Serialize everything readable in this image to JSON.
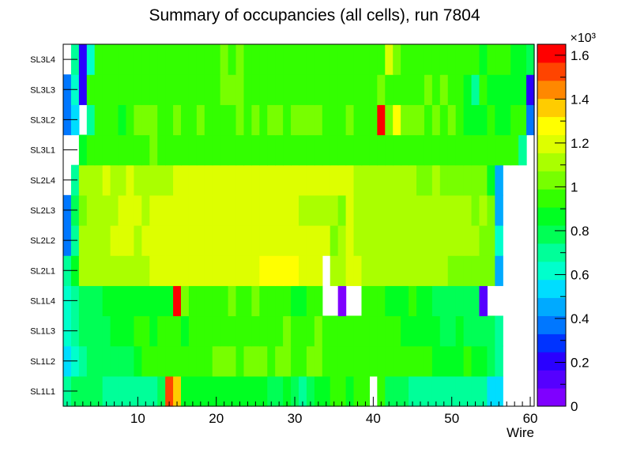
{
  "chart_data": {
    "type": "heatmap",
    "title": "Summary of occupancies (all cells),      run 7804",
    "xlabel": "Wire",
    "ylabel": "",
    "x_range": [
      0.5,
      60.5
    ],
    "x_ticks": [
      "10",
      "20",
      "30",
      "40",
      "50",
      "60"
    ],
    "x_tick_values": [
      10,
      20,
      30,
      40,
      50,
      60
    ],
    "y_labels": [
      "SL1L1",
      "SL1L2",
      "SL1L3",
      "SL1L4",
      "SL2L1",
      "SL2L2",
      "SL2L3",
      "SL2L4",
      "SL3L1",
      "SL3L2",
      "SL3L3",
      "SL3L4"
    ],
    "z_range": [
      0,
      1650
    ],
    "z_scale_label": "×10³",
    "z_ticks": [
      "0",
      "0.2",
      "0.4",
      "0.6",
      "0.8",
      "1",
      "1.2",
      "1.4",
      "1.6"
    ],
    "z_tick_values": [
      0,
      200,
      400,
      600,
      800,
      1000,
      1200,
      1400,
      1600
    ],
    "palette": [
      "#7f00ff",
      "#5500ff",
      "#2a00ff",
      "#0033ff",
      "#0077ff",
      "#00aaff",
      "#00ddff",
      "#00ffcc",
      "#00ff99",
      "#00ff55",
      "#00ff22",
      "#33ff00",
      "#77ff00",
      "#aaff00",
      "#ddff00",
      "#ffff00",
      "#ffcc00",
      "#ff8800",
      "#ff4400",
      "#ff0000"
    ],
    "values": [
      [
        680,
        780,
        800,
        800,
        780,
        740,
        740,
        740,
        740,
        740,
        740,
        740,
        760,
        1500,
        1320,
        860,
        900,
        840,
        860,
        900,
        880,
        840,
        880,
        900,
        860,
        860,
        820,
        820,
        860,
        760,
        740,
        820,
        880,
        900,
        920,
        960,
        840,
        940,
        960,
        0,
        980,
        800,
        800,
        800,
        720,
        720,
        720,
        700,
        700,
        680,
        680,
        680,
        680,
        680,
        520,
        520,
        0,
        0,
        0,
        0
      ],
      [
        500,
        580,
        740,
        780,
        780,
        800,
        820,
        820,
        820,
        900,
        920,
        940,
        940,
        940,
        920,
        940,
        960,
        920,
        980,
        1000,
        1000,
        1000,
        980,
        1000,
        1040,
        1020,
        960,
        1000,
        1000,
        960,
        980,
        1000,
        1020,
        960,
        960,
        940,
        980,
        960,
        980,
        920,
        940,
        940,
        920,
        960,
        940,
        920,
        920,
        880,
        900,
        900,
        900,
        920,
        860,
        860,
        820,
        720,
        0,
        0,
        0,
        0
      ],
      [
        580,
        700,
        760,
        780,
        800,
        800,
        860,
        860,
        900,
        940,
        920,
        900,
        920,
        940,
        960,
        900,
        960,
        940,
        960,
        960,
        940,
        960,
        960,
        960,
        980,
        980,
        960,
        960,
        1000,
        980,
        960,
        980,
        1000,
        920,
        960,
        980,
        960,
        960,
        960,
        920,
        920,
        920,
        960,
        900,
        900,
        900,
        880,
        860,
        820,
        820,
        840,
        820,
        820,
        820,
        760,
        700,
        0,
        0,
        0,
        0
      ],
      [
        600,
        740,
        780,
        800,
        820,
        860,
        880,
        860,
        840,
        880,
        880,
        860,
        880,
        880,
        1680,
        1000,
        940,
        980,
        960,
        960,
        980,
        1000,
        960,
        960,
        1000,
        980,
        940,
        960,
        980,
        900,
        880,
        960,
        980,
        0,
        0,
        60,
        0,
        0,
        960,
        960,
        920,
        880,
        880,
        880,
        920,
        880,
        860,
        780,
        760,
        780,
        760,
        760,
        760,
        140,
        0,
        0,
        0,
        0,
        0,
        0
      ],
      [
        680,
        880,
        1080,
        1100,
        1100,
        1080,
        1140,
        1140,
        1140,
        1140,
        1140,
        1180,
        1160,
        1160,
        1200,
        1180,
        1200,
        1200,
        1200,
        1200,
        1200,
        1200,
        1200,
        1200,
        1200,
        1240,
        1240,
        1240,
        1240,
        1260,
        1180,
        1200,
        1200,
        0,
        1100,
        1140,
        1160,
        1160,
        1140,
        1140,
        1140,
        1100,
        1100,
        1100,
        1100,
        1100,
        1100,
        1100,
        1100,
        1060,
        1060,
        1060,
        1060,
        1040,
        1000,
        460,
        0,
        0,
        0,
        0
      ],
      [
        380,
        720,
        1100,
        1120,
        1140,
        1140,
        1160,
        1180,
        1180,
        1140,
        1160,
        1180,
        1200,
        1200,
        1200,
        1200,
        1200,
        1180,
        1200,
        1200,
        1200,
        1200,
        1200,
        1220,
        1220,
        1220,
        1200,
        1200,
        1220,
        1220,
        1200,
        1200,
        1200,
        1200,
        1060,
        1120,
        1200,
        1140,
        1140,
        1120,
        1120,
        1100,
        1100,
        1100,
        1100,
        1100,
        1100,
        1100,
        1100,
        1080,
        1100,
        1080,
        1100,
        1060,
        1060,
        600,
        0,
        0,
        0,
        0
      ],
      [
        400,
        760,
        1040,
        1080,
        1100,
        1100,
        1140,
        1160,
        1160,
        1160,
        1140,
        1160,
        1160,
        1160,
        1180,
        1200,
        1180,
        1180,
        1180,
        1180,
        1180,
        1180,
        1180,
        1180,
        1180,
        1160,
        1160,
        1160,
        1180,
        1180,
        1140,
        1100,
        1100,
        1120,
        1080,
        1020,
        1160,
        1120,
        1100,
        1100,
        1120,
        1100,
        1100,
        1120,
        1120,
        1100,
        1080,
        1080,
        1080,
        1100,
        1080,
        1080,
        1060,
        1080,
        1020,
        460,
        0,
        0,
        0,
        0
      ],
      [
        0,
        660,
        1080,
        1100,
        1140,
        1160,
        1140,
        1140,
        1160,
        1140,
        1100,
        1120,
        1140,
        1140,
        1160,
        1160,
        1180,
        1180,
        1180,
        1180,
        1180,
        1180,
        1180,
        1180,
        1180,
        1160,
        1180,
        1180,
        1160,
        1180,
        1180,
        1180,
        1180,
        1180,
        1160,
        1160,
        1180,
        1140,
        1120,
        1120,
        1100,
        1100,
        1100,
        1080,
        1080,
        1060,
        1060,
        1080,
        1060,
        1060,
        1060,
        1040,
        1060,
        1040,
        900,
        420,
        0,
        0,
        0,
        0
      ],
      [
        0,
        0,
        880,
        960,
        960,
        940,
        940,
        960,
        980,
        980,
        980,
        1000,
        960,
        980,
        960,
        960,
        960,
        960,
        960,
        960,
        980,
        980,
        960,
        960,
        960,
        980,
        960,
        960,
        960,
        960,
        980,
        960,
        960,
        960,
        960,
        960,
        960,
        960,
        960,
        960,
        960,
        960,
        960,
        960,
        960,
        960,
        960,
        960,
        960,
        960,
        960,
        960,
        960,
        960,
        960,
        960,
        960,
        960,
        720,
        0
      ],
      [
        380,
        520,
        0,
        660,
        940,
        960,
        940,
        900,
        940,
        1000,
        1000,
        1000,
        980,
        960,
        1000,
        960,
        960,
        1000,
        960,
        940,
        980,
        960,
        1000,
        960,
        1000,
        980,
        1000,
        1000,
        960,
        1000,
        1000,
        1060,
        1000,
        960,
        960,
        960,
        1000,
        960,
        960,
        960,
        1700,
        1040,
        1240,
        1000,
        1000,
        1000,
        960,
        1020,
        960,
        1040,
        960,
        900,
        900,
        900,
        940,
        900,
        900,
        940,
        960,
        380
      ],
      [
        400,
        580,
        200,
        980,
        980,
        980,
        960,
        960,
        960,
        960,
        960,
        980,
        960,
        940,
        960,
        960,
        960,
        960,
        960,
        960,
        1000,
        1000,
        1000,
        960,
        980,
        980,
        960,
        960,
        960,
        960,
        960,
        960,
        960,
        960,
        980,
        960,
        960,
        960,
        960,
        960,
        1040,
        960,
        960,
        980,
        960,
        960,
        1020,
        960,
        1000,
        980,
        920,
        900,
        700,
        980,
        880,
        900,
        860,
        860,
        900,
        200
      ],
      [
        0,
        740,
        200,
        600,
        960,
        920,
        920,
        920,
        920,
        940,
        960,
        920,
        920,
        920,
        920,
        920,
        960,
        920,
        940,
        960,
        1000,
        980,
        1000,
        960,
        940,
        920,
        920,
        920,
        920,
        960,
        960,
        960,
        960,
        960,
        960,
        960,
        960,
        960,
        960,
        960,
        960,
        1200,
        1040,
        960,
        960,
        960,
        940,
        940,
        940,
        960,
        920,
        920,
        920,
        900,
        920,
        940,
        920,
        900,
        860,
        760
      ]
    ]
  }
}
